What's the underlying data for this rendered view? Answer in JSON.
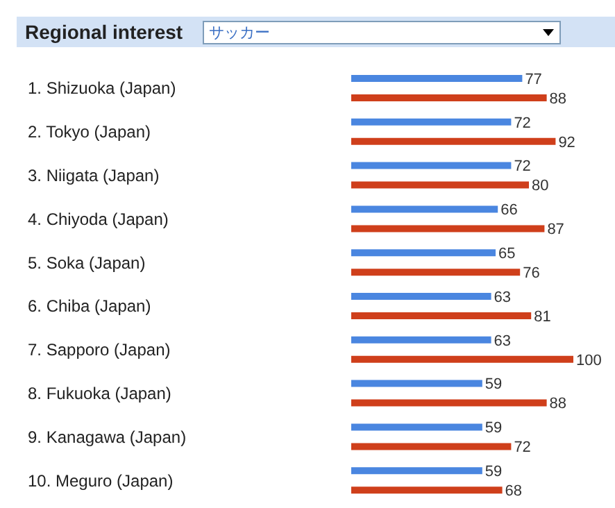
{
  "chart_data": {
    "type": "bar",
    "orientation": "horizontal",
    "title": "Regional interest",
    "subtitle": "サッカー",
    "categories": [
      "1. Shizuoka (Japan)",
      "2. Tokyo (Japan)",
      "3. Niigata (Japan)",
      "4. Chiyoda (Japan)",
      "5. Soka (Japan)",
      "6. Chiba (Japan)",
      "7. Sapporo (Japan)",
      "8. Fukuoka (Japan)",
      "9. Kanagawa (Japan)",
      "10. Meguro (Japan)"
    ],
    "series": [
      {
        "color": "#4a86e0",
        "values": [
          77,
          72,
          72,
          66,
          65,
          63,
          63,
          59,
          59,
          59
        ]
      },
      {
        "color": "#cf3f1b",
        "values": [
          88,
          92,
          80,
          87,
          76,
          81,
          100,
          88,
          72,
          68
        ]
      }
    ],
    "data_labels": true
  }
}
